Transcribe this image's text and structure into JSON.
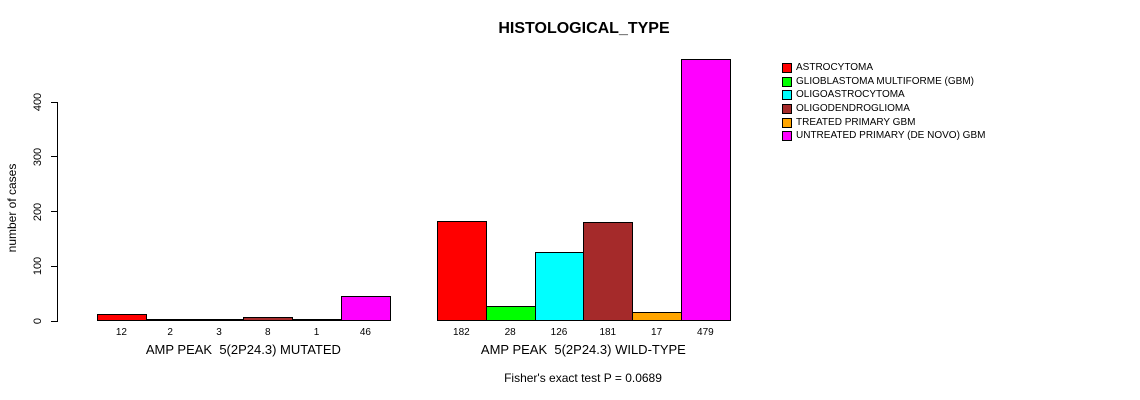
{
  "chart_data": {
    "type": "bar",
    "title": "HISTOLOGICAL_TYPE",
    "ylabel": "number of cases",
    "xlabel": "",
    "yticks": [
      0,
      100,
      200,
      300,
      400
    ],
    "ylim": [
      0,
      479
    ],
    "grid": false,
    "legend_position": "top-right",
    "categories": [
      "AMP PEAK  5(2P24.3) MUTATED",
      "AMP PEAK  5(2P24.3) WILD-TYPE"
    ],
    "series": [
      {
        "name": "ASTROCYTOMA",
        "color": "#FF0000",
        "values": [
          12,
          182
        ]
      },
      {
        "name": "GLIOBLASTOMA MULTIFORME (GBM)",
        "color": "#00FF00",
        "values": [
          2,
          28
        ]
      },
      {
        "name": "OLIGOASTROCYTOMA",
        "color": "#00FFFF",
        "values": [
          3,
          126
        ]
      },
      {
        "name": "OLIGODENDROGLIOMA",
        "color": "#A52A2A",
        "values": [
          8,
          181
        ]
      },
      {
        "name": "TREATED PRIMARY GBM",
        "color": "#FFA500",
        "values": [
          1,
          17
        ]
      },
      {
        "name": "UNTREATED PRIMARY (DE NOVO) GBM",
        "color": "#FF00FF",
        "values": [
          46,
          479
        ]
      }
    ],
    "annotation": "Fisher's exact test P = 0.0689"
  }
}
